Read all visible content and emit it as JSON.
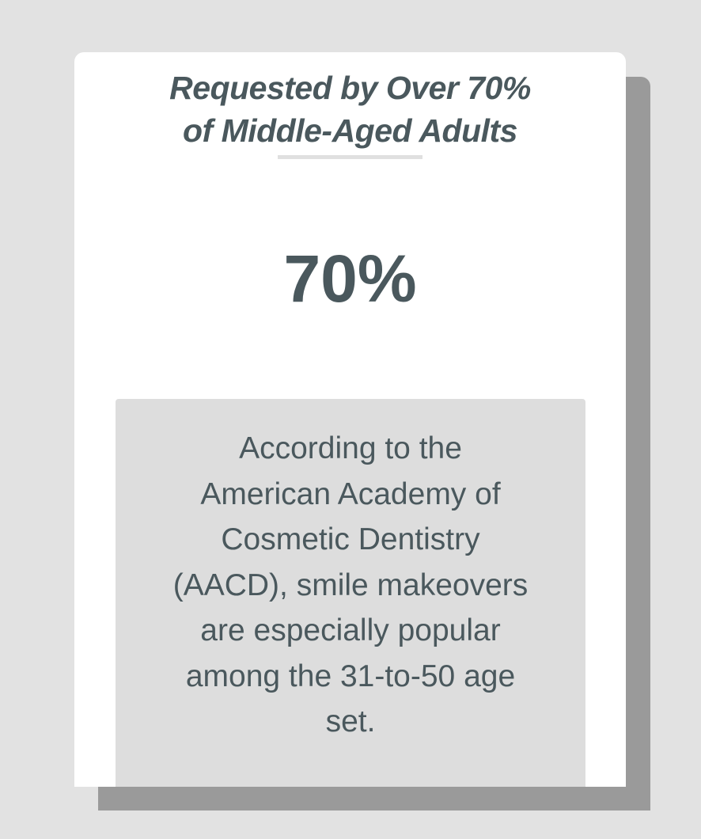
{
  "heading": {
    "lines": [
      "Requested by Over 70%",
      "of Middle-Aged Adults"
    ]
  },
  "stat": {
    "value": "70%"
  },
  "description": {
    "lines": [
      "According to the",
      "American Academy of",
      "Cosmetic Dentistry",
      "(AACD), smile makeovers",
      "are especially popular",
      "among the 31-to-50 age",
      "set."
    ]
  },
  "colors": {
    "text": "#4a585d",
    "background": "#e2e2e2",
    "card": "#ffffff",
    "shadow": "#9a9a9a",
    "text_box": "#dddddd"
  }
}
